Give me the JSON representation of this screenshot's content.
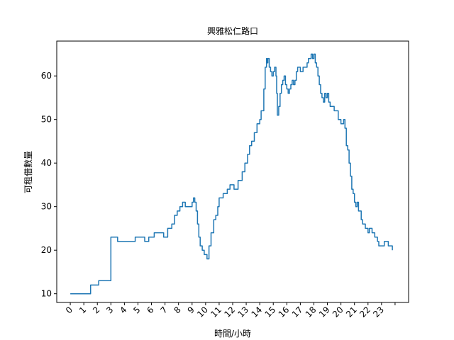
{
  "chart_data": {
    "type": "line",
    "title": "興雅松仁路口",
    "xlabel": "時間/小時",
    "ylabel": "可租借數量",
    "xlim": [
      -1,
      25
    ],
    "ylim": [
      8,
      68
    ],
    "xticks": [
      0,
      1,
      2,
      3,
      4,
      5,
      6,
      7,
      8,
      9,
      10,
      11,
      12,
      13,
      14,
      15,
      16,
      17,
      18,
      19,
      20,
      21,
      22,
      23,
      24
    ],
    "xtick_labels": [
      "0",
      "1",
      "2",
      "3",
      "4",
      "5",
      "6",
      "7",
      "8",
      "9",
      "10",
      "11",
      "12",
      "13",
      "14",
      "15",
      "16",
      "17",
      "18",
      "19",
      "20",
      "21",
      "22",
      "23",
      ""
    ],
    "yticks": [
      10,
      20,
      30,
      40,
      50,
      60
    ],
    "ytick_labels": [
      "10",
      "20",
      "30",
      "40",
      "50",
      "60"
    ],
    "grid": false,
    "line_color": "#1f77b4",
    "series": [
      {
        "step": "post",
        "x": [
          0.0,
          1.5,
          1.8,
          2.1,
          3.0,
          3.5,
          4.8,
          5.5,
          5.8,
          6.2,
          6.9,
          7.2,
          7.5,
          7.7,
          7.9,
          8.1,
          8.3,
          8.5,
          8.8,
          9.0,
          9.1,
          9.2,
          9.3,
          9.4,
          9.5,
          9.6,
          9.75,
          9.9,
          10.1,
          10.25,
          10.4,
          10.6,
          10.75,
          10.9,
          11.0,
          11.3,
          11.6,
          11.8,
          12.1,
          12.4,
          12.7,
          12.9,
          13.1,
          13.25,
          13.4,
          13.6,
          13.8,
          14.0,
          14.1,
          14.3,
          14.4,
          14.5,
          14.55,
          14.6,
          14.7,
          14.8,
          14.9,
          15.0,
          15.1,
          15.2,
          15.25,
          15.3,
          15.4,
          15.5,
          15.6,
          15.7,
          15.8,
          15.9,
          16.0,
          16.1,
          16.2,
          16.3,
          16.4,
          16.5,
          16.6,
          16.7,
          16.8,
          16.9,
          17.0,
          17.2,
          17.5,
          17.6,
          17.8,
          17.9,
          18.0,
          18.1,
          18.2,
          18.3,
          18.4,
          18.5,
          18.6,
          18.7,
          18.8,
          18.9,
          19.0,
          19.1,
          19.2,
          19.3,
          19.5,
          19.8,
          20.0,
          20.2,
          20.3,
          20.4,
          20.5,
          20.6,
          20.7,
          20.8,
          20.9,
          21.0,
          21.1,
          21.2,
          21.3,
          21.5,
          21.6,
          21.8,
          22.0,
          22.1,
          22.3,
          22.5,
          22.7,
          22.8,
          23.0,
          23.2,
          23.5,
          23.8
        ],
        "values": [
          10,
          12,
          12,
          13,
          23,
          22,
          23,
          22,
          23,
          24,
          23,
          25,
          26,
          28,
          29,
          30,
          31,
          30,
          30,
          31,
          32,
          31,
          29,
          26,
          23,
          21,
          20,
          19,
          18,
          21,
          24,
          27,
          28,
          30,
          32,
          33,
          34,
          35,
          34,
          36,
          38,
          40,
          42,
          44,
          45,
          47,
          49,
          50,
          52,
          57,
          62,
          64,
          63,
          64,
          62,
          61,
          60,
          61,
          62,
          60,
          56,
          51,
          53,
          56,
          58,
          59,
          60,
          58,
          57,
          56,
          57,
          58,
          59,
          58,
          59,
          61,
          62,
          62,
          61,
          62,
          63,
          64,
          65,
          64,
          65,
          63,
          62,
          60,
          58,
          56,
          55,
          54,
          56,
          55,
          56,
          54,
          53,
          53,
          52,
          50,
          49,
          50,
          48,
          44,
          43,
          40,
          37,
          34,
          33,
          31,
          30,
          31,
          29,
          27,
          26,
          25,
          24,
          25,
          24,
          23,
          22,
          21,
          21,
          22,
          21,
          20
        ]
      }
    ]
  }
}
